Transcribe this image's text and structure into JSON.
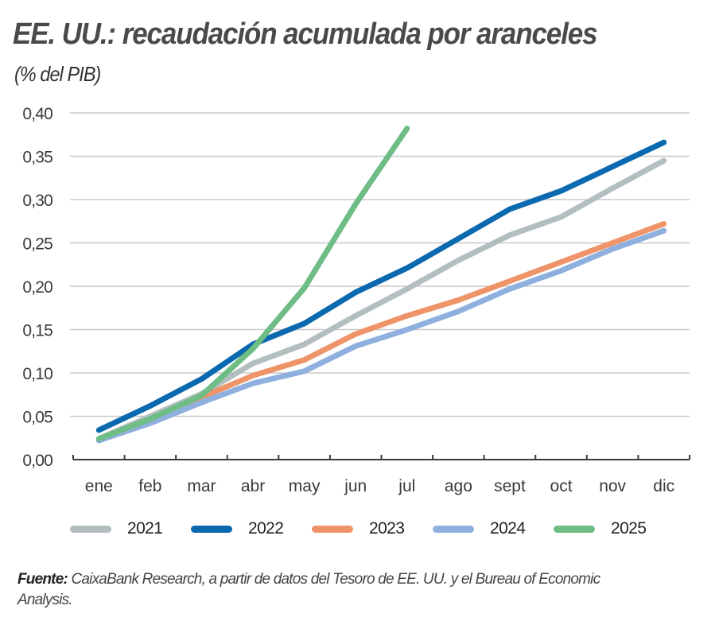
{
  "chart_data": {
    "type": "line",
    "title": "EE. UU.: recaudación acumulada por aranceles",
    "subtitle": "(% del PIB)",
    "xlabel": "",
    "ylabel": "",
    "categories": [
      "ene",
      "feb",
      "mar",
      "abr",
      "may",
      "jun",
      "jul",
      "ago",
      "sept",
      "oct",
      "nov",
      "dic"
    ],
    "ylim": [
      0,
      0.4
    ],
    "yticks": [
      0,
      0.05,
      0.1,
      0.15,
      0.2,
      0.25,
      0.3,
      0.35,
      0.4
    ],
    "ytick_labels": [
      "0,00",
      "0,05",
      "0,10",
      "0,15",
      "0,20",
      "0,25",
      "0,30",
      "0,35",
      "0,40"
    ],
    "grid": "horizontal",
    "legend_position": "bottom",
    "series": [
      {
        "name": "2021",
        "color": "#b3bec0",
        "values": [
          0.024,
          0.05,
          0.076,
          0.111,
          0.133,
          0.166,
          0.197,
          0.23,
          0.259,
          0.28,
          0.313,
          0.345
        ]
      },
      {
        "name": "2022",
        "color": "#0b69b0",
        "values": [
          0.034,
          0.062,
          0.093,
          0.133,
          0.157,
          0.193,
          0.221,
          0.255,
          0.289,
          0.31,
          0.338,
          0.366
        ]
      },
      {
        "name": "2023",
        "color": "#ef9468",
        "values": [
          0.024,
          0.046,
          0.072,
          0.097,
          0.115,
          0.145,
          0.166,
          0.184,
          0.206,
          0.228,
          0.25,
          0.272
        ]
      },
      {
        "name": "2024",
        "color": "#8fb0df",
        "values": [
          0.022,
          0.042,
          0.066,
          0.088,
          0.102,
          0.131,
          0.15,
          0.171,
          0.197,
          0.218,
          0.243,
          0.264
        ]
      },
      {
        "name": "2025",
        "color": "#6dbd85",
        "values": [
          0.024,
          0.047,
          0.074,
          0.128,
          0.198,
          0.295,
          0.382
        ]
      }
    ]
  },
  "source": {
    "label": "Fuente:",
    "text": " CaixaBank Research, a partir de datos del Tesoro de EE. UU. y el Bureau of Economic Analysis."
  }
}
